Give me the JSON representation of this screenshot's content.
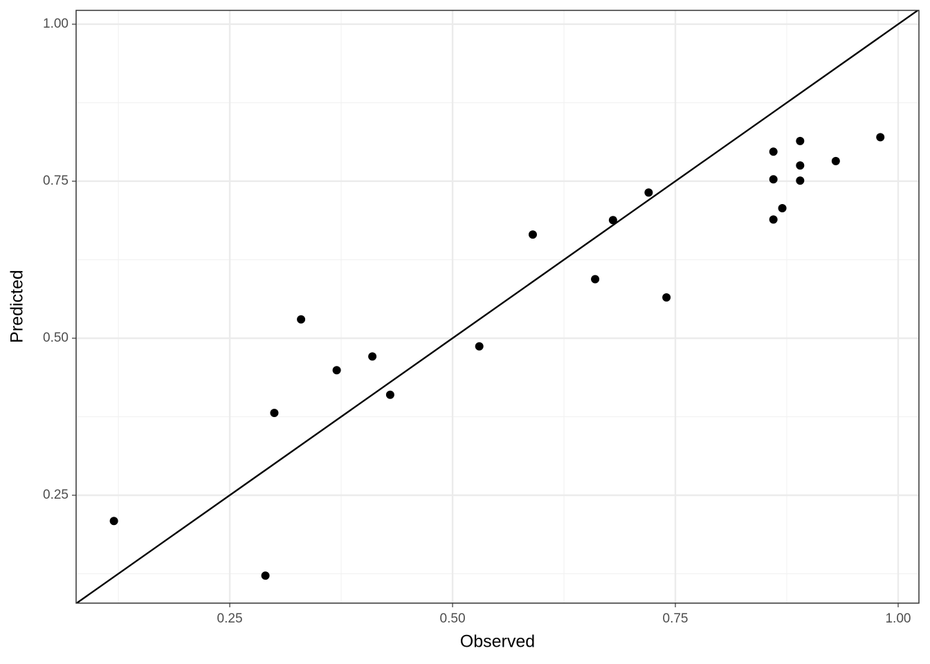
{
  "chart_data": {
    "type": "scatter",
    "x_label": "Observed",
    "y_label": "Predicted",
    "x": [
      0.12,
      0.29,
      0.3,
      0.33,
      0.37,
      0.41,
      0.43,
      0.53,
      0.59,
      0.66,
      0.68,
      0.72,
      0.74,
      0.86,
      0.86,
      0.86,
      0.87,
      0.89,
      0.89,
      0.89,
      0.93,
      0.98
    ],
    "series": [
      {
        "color": "#000000",
        "values": [
          0.209,
          0.122,
          0.381,
          0.53,
          0.449,
          0.471,
          0.41,
          0.487,
          0.665,
          0.594,
          0.688,
          0.732,
          0.565,
          0.797,
          0.753,
          0.689,
          0.707,
          0.814,
          0.775,
          0.751,
          0.782,
          0.82
        ]
      }
    ],
    "xlim": [
      0.0776,
      1.0233
    ],
    "ylim": [
      0.0782,
      1.022
    ],
    "xticks": [
      {
        "value": 0.25,
        "label": "0.25"
      },
      {
        "value": 0.5,
        "label": "0.50"
      },
      {
        "value": 0.75,
        "label": "0.75"
      },
      {
        "value": 1.0,
        "label": "1.00"
      }
    ],
    "yticks": [
      {
        "value": 0.25,
        "label": "0.25"
      },
      {
        "value": 0.5,
        "label": "0.50"
      },
      {
        "value": 0.75,
        "label": "0.75"
      },
      {
        "value": 1.0,
        "label": "1.00"
      }
    ],
    "xminorticks": [
      0.125,
      0.375,
      0.625,
      0.875
    ],
    "yminorticks": [
      0.125,
      0.375,
      0.625,
      0.875
    ],
    "grid": true,
    "reference_line": {
      "slope": 1,
      "intercept": 0,
      "color": "#000000"
    }
  }
}
